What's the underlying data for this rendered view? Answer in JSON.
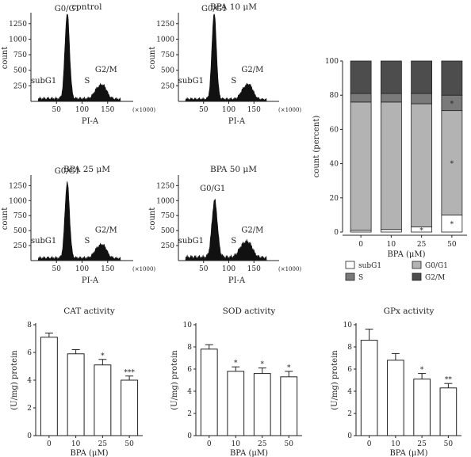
{
  "chart_data": [
    {
      "type": "area",
      "title": "control",
      "xlabel": "PI-A",
      "ylabel": "count",
      "x_unit_note": "(×1000)",
      "yticks": [
        250,
        500,
        750,
        1000,
        1250
      ],
      "xticks": [
        50,
        100,
        150
      ],
      "xlim": [
        0,
        200
      ],
      "ylim": [
        0,
        1400
      ],
      "peaks": [
        {
          "x": 71,
          "height": 1380,
          "width": 4.5
        },
        {
          "x": 140,
          "height": 215,
          "width": 8.5
        },
        {
          "x": 127,
          "height": 80,
          "width": 6
        }
      ],
      "baseline": 70,
      "phase_labels": [
        {
          "text": "G0/G1",
          "x": 71,
          "y": 1450
        },
        {
          "text": "subG1",
          "x": 25,
          "y": 290
        },
        {
          "text": "S",
          "x": 110,
          "y": 290
        },
        {
          "text": "G2/M",
          "x": 147,
          "y": 470
        }
      ]
    },
    {
      "type": "area",
      "title": "BPA 10 μM",
      "xlabel": "PI-A",
      "ylabel": "count",
      "x_unit_note": "(×1000)",
      "yticks": [
        250,
        500,
        750,
        1000,
        1250
      ],
      "xticks": [
        50,
        100,
        150
      ],
      "xlim": [
        0,
        200
      ],
      "ylim": [
        0,
        1400
      ],
      "peaks": [
        {
          "x": 71,
          "height": 1380,
          "width": 4.5
        },
        {
          "x": 140,
          "height": 230,
          "width": 8.5
        },
        {
          "x": 127,
          "height": 80,
          "width": 6
        }
      ],
      "baseline": 60,
      "phase_labels": [
        {
          "text": "G0/G1",
          "x": 71,
          "y": 1450
        },
        {
          "text": "subG1",
          "x": 25,
          "y": 290
        },
        {
          "text": "S",
          "x": 110,
          "y": 290
        },
        {
          "text": "G2/M",
          "x": 147,
          "y": 470
        }
      ]
    },
    {
      "type": "area",
      "title": "BPA 25 μM",
      "xlabel": "PI-A",
      "ylabel": "count",
      "x_unit_note": "(×1000)",
      "yticks": [
        250,
        500,
        750,
        1000,
        1250
      ],
      "xticks": [
        50,
        100,
        150
      ],
      "xlim": [
        0,
        200
      ],
      "ylim": [
        0,
        1400
      ],
      "peaks": [
        {
          "x": 71,
          "height": 1260,
          "width": 4.5
        },
        {
          "x": 140,
          "height": 215,
          "width": 8.5
        },
        {
          "x": 127,
          "height": 80,
          "width": 6
        }
      ],
      "baseline": 70,
      "phase_labels": [
        {
          "text": "G0/G1",
          "x": 71,
          "y": 1450
        },
        {
          "text": "subG1",
          "x": 25,
          "y": 290
        },
        {
          "text": "S",
          "x": 110,
          "y": 290
        },
        {
          "text": "G2/M",
          "x": 147,
          "y": 470
        }
      ]
    },
    {
      "type": "area",
      "title": "BPA 50 μM",
      "xlabel": "PI-A",
      "ylabel": "count",
      "x_unit_note": "(×1000)",
      "yticks": [
        250,
        500,
        750,
        1000,
        1250
      ],
      "xticks": [
        50,
        100,
        150
      ],
      "xlim": [
        0,
        200
      ],
      "ylim": [
        0,
        1400
      ],
      "peaks": [
        {
          "x": 72,
          "height": 950,
          "width": 5.5
        },
        {
          "x": 138,
          "height": 245,
          "width": 9.5
        },
        {
          "x": 124,
          "height": 95,
          "width": 7
        }
      ],
      "baseline": 90,
      "phase_labels": [
        {
          "text": "G0/G1",
          "x": 68,
          "y": 1160
        },
        {
          "text": "subG1",
          "x": 25,
          "y": 290
        },
        {
          "text": "S",
          "x": 110,
          "y": 290
        },
        {
          "text": "G2/M",
          "x": 147,
          "y": 470
        }
      ]
    },
    {
      "type": "bar",
      "stacked": true,
      "categories": [
        "0",
        "10",
        "25",
        "50"
      ],
      "xlabel": "BPA (μM)",
      "ylabel": "count (percent)",
      "ylim": [
        0,
        100
      ],
      "yticks": [
        0,
        20,
        40,
        60,
        80,
        100
      ],
      "series": [
        {
          "name": "subG1",
          "values": [
            1,
            1.5,
            3,
            10
          ],
          "color": "#ffffff"
        },
        {
          "name": "G0/G1",
          "values": [
            75,
            74.5,
            72,
            61
          ],
          "color": "#b3b3b3"
        },
        {
          "name": "S",
          "values": [
            5,
            5,
            6,
            9
          ],
          "color": "#7a7a7a"
        },
        {
          "name": "G2/M",
          "values": [
            19,
            19,
            19,
            20
          ],
          "color": "#4d4d4d"
        }
      ],
      "annotations": [
        {
          "category": "25",
          "series": "subG1",
          "text": "*"
        },
        {
          "category": "50",
          "series": "subG1",
          "text": "*"
        },
        {
          "category": "50",
          "series": "G0/G1",
          "text": "*"
        },
        {
          "category": "50",
          "series": "S",
          "text": "*"
        }
      ],
      "legend_position": "bottom"
    },
    {
      "type": "bar",
      "title": "CAT activity",
      "categories": [
        "0",
        "10",
        "25",
        "50"
      ],
      "values": [
        7.1,
        5.9,
        5.1,
        4.0
      ],
      "errors": [
        0.3,
        0.3,
        0.4,
        0.3
      ],
      "significance": [
        "",
        "",
        "*",
        "***"
      ],
      "xlabel": "BPA (μM)",
      "ylabel": "(U/mg) protein",
      "ylim": [
        0,
        8
      ],
      "yticks": [
        0,
        2,
        4,
        6,
        8
      ]
    },
    {
      "type": "bar",
      "title": "SOD activity",
      "categories": [
        "0",
        "10",
        "25",
        "50"
      ],
      "values": [
        7.8,
        5.8,
        5.6,
        5.3
      ],
      "errors": [
        0.4,
        0.4,
        0.5,
        0.5
      ],
      "significance": [
        "",
        "*",
        "*",
        "*"
      ],
      "xlabel": "BPA (μM)",
      "ylabel": "(U/mg) protein",
      "ylim": [
        0,
        10
      ],
      "yticks": [
        0,
        2,
        4,
        6,
        8,
        10
      ]
    },
    {
      "type": "bar",
      "title": "GPx activity",
      "categories": [
        "0",
        "10",
        "25",
        "50"
      ],
      "values": [
        8.6,
        6.8,
        5.1,
        4.3
      ],
      "errors": [
        1.0,
        0.6,
        0.5,
        0.4
      ],
      "significance": [
        "",
        "",
        "*",
        "**"
      ],
      "xlabel": "BPA (μM)",
      "ylabel": "(U/mg) protein",
      "ylim": [
        0,
        10
      ],
      "yticks": [
        0,
        2,
        4,
        6,
        8,
        10
      ]
    }
  ]
}
